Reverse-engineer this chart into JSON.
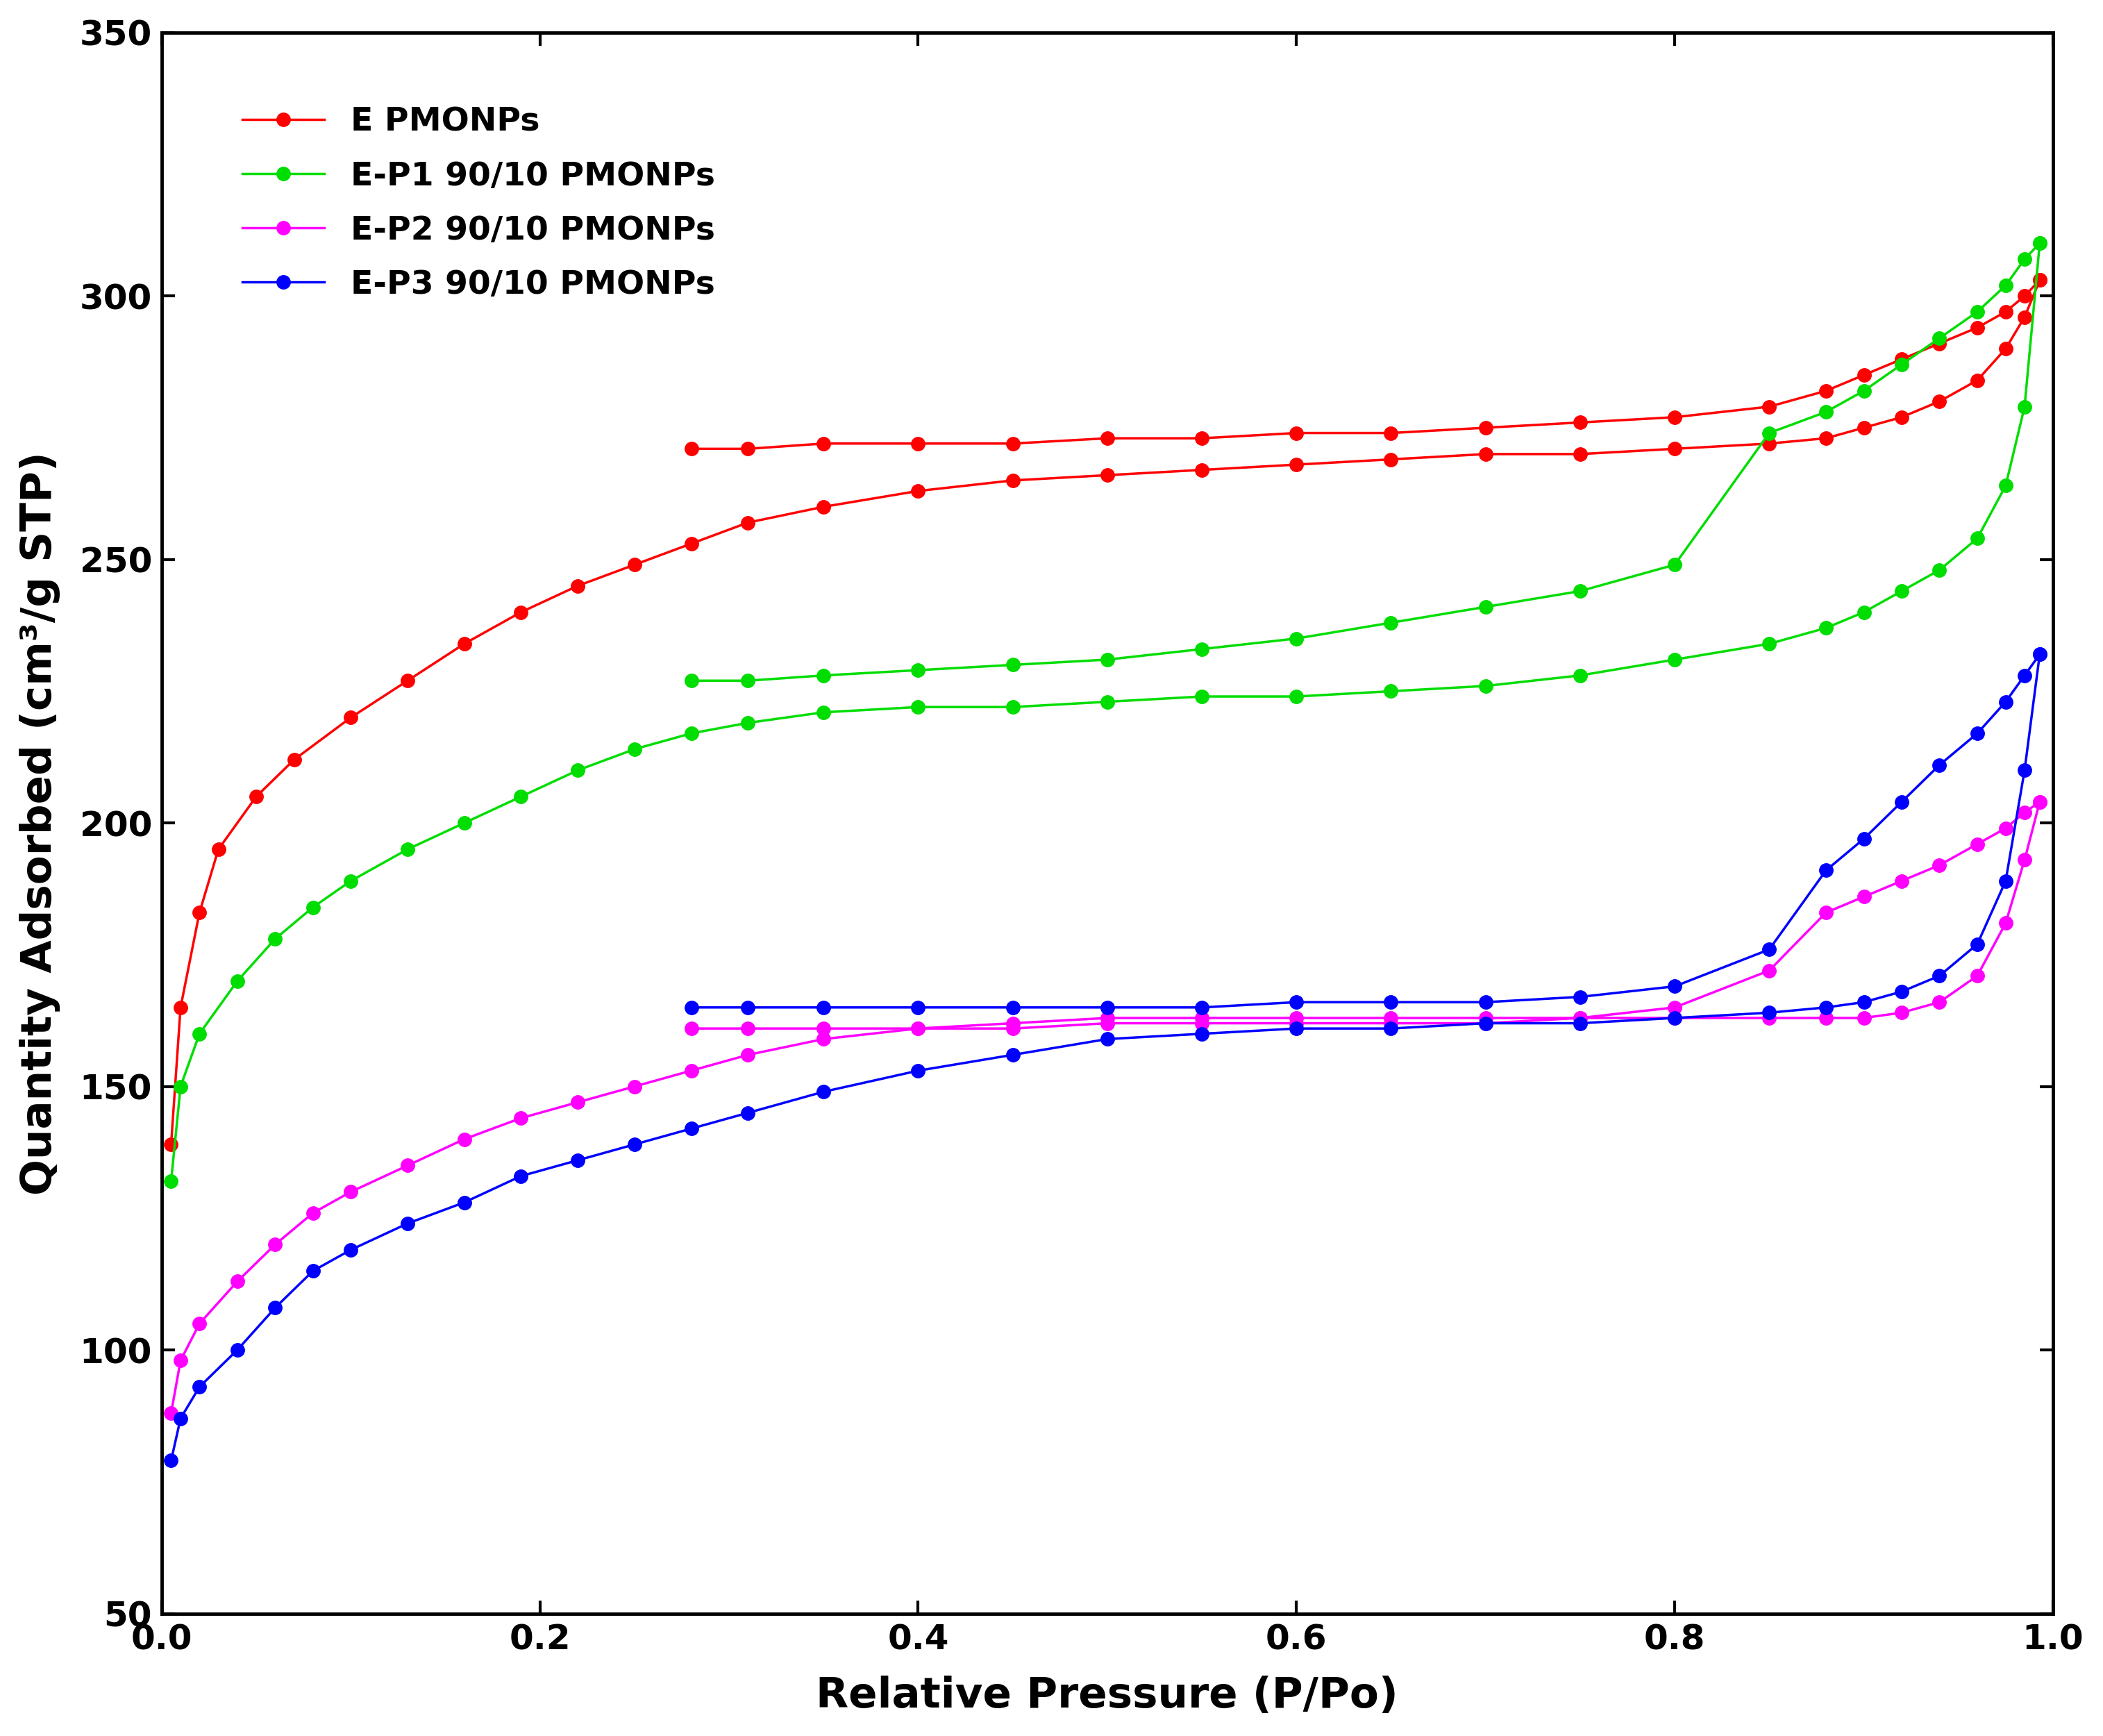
{
  "series": [
    {
      "label": "E PMONPs",
      "color": "#ff0000",
      "adsorption": {
        "x": [
          0.005,
          0.01,
          0.02,
          0.03,
          0.05,
          0.07,
          0.1,
          0.13,
          0.16,
          0.19,
          0.22,
          0.25,
          0.28,
          0.31,
          0.35,
          0.4,
          0.45,
          0.5,
          0.55,
          0.6,
          0.65,
          0.7,
          0.75,
          0.8,
          0.85,
          0.88,
          0.9,
          0.92,
          0.94,
          0.96,
          0.975,
          0.985,
          0.993
        ],
        "y": [
          139,
          165,
          183,
          195,
          205,
          212,
          220,
          227,
          234,
          240,
          245,
          249,
          253,
          257,
          260,
          263,
          265,
          266,
          267,
          268,
          269,
          270,
          270,
          271,
          272,
          273,
          275,
          277,
          280,
          284,
          290,
          296,
          303
        ]
      },
      "desorption": {
        "x": [
          0.993,
          0.985,
          0.975,
          0.96,
          0.94,
          0.92,
          0.9,
          0.88,
          0.85,
          0.8,
          0.75,
          0.7,
          0.65,
          0.6,
          0.55,
          0.5,
          0.45,
          0.4,
          0.35,
          0.31,
          0.28
        ],
        "y": [
          303,
          300,
          297,
          294,
          291,
          288,
          285,
          282,
          279,
          277,
          276,
          275,
          274,
          274,
          273,
          273,
          272,
          272,
          272,
          271,
          271
        ]
      }
    },
    {
      "label": "E-P1 90/10 PMONPs",
      "color": "#00dd00",
      "adsorption": {
        "x": [
          0.005,
          0.01,
          0.02,
          0.04,
          0.06,
          0.08,
          0.1,
          0.13,
          0.16,
          0.19,
          0.22,
          0.25,
          0.28,
          0.31,
          0.35,
          0.4,
          0.45,
          0.5,
          0.55,
          0.6,
          0.65,
          0.7,
          0.75,
          0.8,
          0.85,
          0.88,
          0.9,
          0.92,
          0.94,
          0.96,
          0.975,
          0.985,
          0.993
        ],
        "y": [
          132,
          150,
          160,
          170,
          178,
          184,
          189,
          195,
          200,
          205,
          210,
          214,
          217,
          219,
          221,
          222,
          222,
          223,
          224,
          224,
          225,
          226,
          228,
          231,
          234,
          237,
          240,
          244,
          248,
          254,
          264,
          279,
          310
        ]
      },
      "desorption": {
        "x": [
          0.993,
          0.985,
          0.975,
          0.96,
          0.94,
          0.92,
          0.9,
          0.88,
          0.85,
          0.8,
          0.75,
          0.7,
          0.65,
          0.6,
          0.55,
          0.5,
          0.45,
          0.4,
          0.35,
          0.31,
          0.28
        ],
        "y": [
          310,
          307,
          302,
          297,
          292,
          287,
          282,
          278,
          274,
          249,
          244,
          241,
          238,
          235,
          233,
          231,
          230,
          229,
          228,
          227,
          227
        ]
      }
    },
    {
      "label": "E-P2 90/10 PMONPs",
      "color": "#ff00ff",
      "adsorption": {
        "x": [
          0.005,
          0.01,
          0.02,
          0.04,
          0.06,
          0.08,
          0.1,
          0.13,
          0.16,
          0.19,
          0.22,
          0.25,
          0.28,
          0.31,
          0.35,
          0.4,
          0.45,
          0.5,
          0.55,
          0.6,
          0.65,
          0.7,
          0.75,
          0.8,
          0.85,
          0.88,
          0.9,
          0.92,
          0.94,
          0.96,
          0.975,
          0.985,
          0.993
        ],
        "y": [
          88,
          98,
          105,
          113,
          120,
          126,
          130,
          135,
          140,
          144,
          147,
          150,
          153,
          156,
          159,
          161,
          162,
          163,
          163,
          163,
          163,
          163,
          163,
          163,
          163,
          163,
          163,
          164,
          166,
          171,
          181,
          193,
          204
        ]
      },
      "desorption": {
        "x": [
          0.993,
          0.985,
          0.975,
          0.96,
          0.94,
          0.92,
          0.9,
          0.88,
          0.85,
          0.8,
          0.75,
          0.7,
          0.65,
          0.6,
          0.55,
          0.5,
          0.45,
          0.4,
          0.35,
          0.31,
          0.28
        ],
        "y": [
          204,
          202,
          199,
          196,
          192,
          189,
          186,
          183,
          172,
          165,
          163,
          162,
          162,
          162,
          162,
          162,
          161,
          161,
          161,
          161,
          161
        ]
      }
    },
    {
      "label": "E-P3 90/10 PMONPs",
      "color": "#0000ff",
      "adsorption": {
        "x": [
          0.005,
          0.01,
          0.02,
          0.04,
          0.06,
          0.08,
          0.1,
          0.13,
          0.16,
          0.19,
          0.22,
          0.25,
          0.28,
          0.31,
          0.35,
          0.4,
          0.45,
          0.5,
          0.55,
          0.6,
          0.65,
          0.7,
          0.75,
          0.8,
          0.85,
          0.88,
          0.9,
          0.92,
          0.94,
          0.96,
          0.975,
          0.985,
          0.993
        ],
        "y": [
          79,
          87,
          93,
          100,
          108,
          115,
          119,
          124,
          128,
          133,
          136,
          139,
          142,
          145,
          149,
          153,
          156,
          159,
          160,
          161,
          161,
          162,
          162,
          163,
          164,
          165,
          166,
          168,
          171,
          177,
          189,
          210,
          232
        ]
      },
      "desorption": {
        "x": [
          0.993,
          0.985,
          0.975,
          0.96,
          0.94,
          0.92,
          0.9,
          0.88,
          0.85,
          0.8,
          0.75,
          0.7,
          0.65,
          0.6,
          0.55,
          0.5,
          0.45,
          0.4,
          0.35,
          0.31,
          0.28
        ],
        "y": [
          232,
          228,
          223,
          217,
          211,
          204,
          197,
          191,
          176,
          169,
          167,
          166,
          166,
          166,
          165,
          165,
          165,
          165,
          165,
          165,
          165
        ]
      }
    }
  ],
  "xlabel": "Relative Pressure (P/Po)",
  "ylabel": "Quantity Adsorbed (cm³/g STP)",
  "xlim": [
    0.0,
    1.0
  ],
  "ylim": [
    50,
    350
  ],
  "xticks": [
    0.0,
    0.2,
    0.4,
    0.6,
    0.8,
    1.0
  ],
  "yticks": [
    50,
    100,
    150,
    200,
    250,
    300,
    350
  ],
  "marker_size": 14,
  "linewidth": 2.5,
  "background_color": "#ffffff",
  "axis_linewidth": 3.5,
  "tick_fontsize": 36,
  "label_fontsize": 44,
  "legend_fontsize": 34
}
